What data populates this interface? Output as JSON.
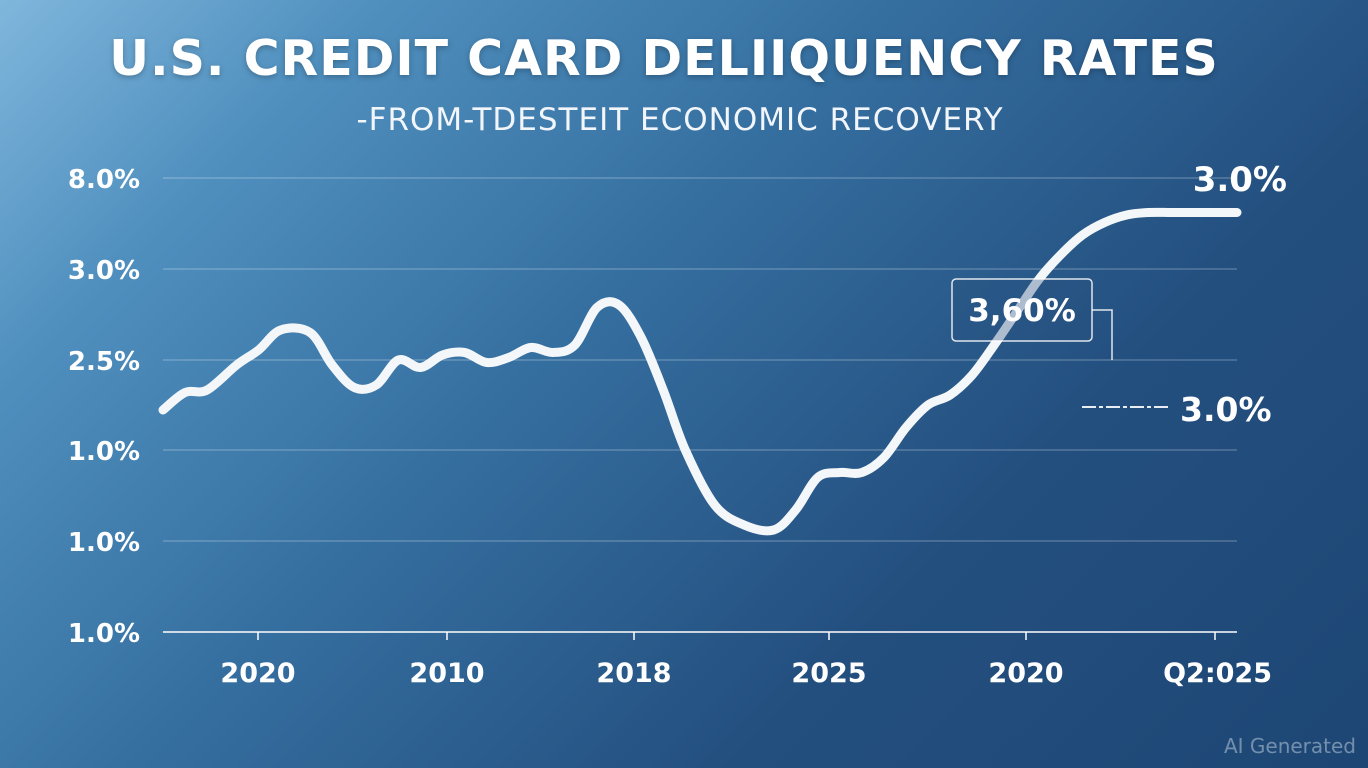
{
  "chart_data": {
    "type": "line",
    "title": "U.S. CREDIT CARD DELIIQUENCY RATES",
    "subtitle": "-FROM-TDESTEIT ECONOMIC RECOVERY",
    "y_tick_labels": [
      "8.0%",
      "3.0%",
      "2.5%",
      "1.0%",
      "1.0%",
      "1.0%"
    ],
    "x_tick_labels": [
      "2020",
      "2010",
      "2018",
      "2025",
      "2020",
      "Q2:025"
    ],
    "grid": true,
    "legend": "none",
    "line_color": "#ffffff",
    "series": [
      {
        "x": [
          0.0,
          0.3,
          0.6,
          1.0,
          1.3,
          1.6,
          2.0,
          2.3,
          2.6,
          2.9,
          3.2,
          3.5,
          3.8,
          4.1,
          4.4,
          4.7,
          5.0,
          5.3,
          5.6,
          5.9,
          6.2,
          6.5,
          6.8,
          7.1,
          7.5,
          7.9,
          8.3,
          8.6,
          8.9,
          9.2,
          9.5,
          9.8,
          10.1,
          10.4,
          10.7,
          11.0,
          11.3,
          11.6,
          11.9,
          12.2,
          12.5,
          12.8,
          13.1,
          13.4,
          13.7,
          14.0,
          14.3,
          14.6
        ],
        "values": [
          2.8,
          3.15,
          3.2,
          3.7,
          4.0,
          4.4,
          4.35,
          3.7,
          3.25,
          3.3,
          3.8,
          3.65,
          3.9,
          3.95,
          3.75,
          3.85,
          4.05,
          3.95,
          4.1,
          4.85,
          4.9,
          4.25,
          3.2,
          2.0,
          0.9,
          0.5,
          0.4,
          0.8,
          1.45,
          1.55,
          1.55,
          1.85,
          2.45,
          2.9,
          3.1,
          3.5,
          4.1,
          4.75,
          5.4,
          5.9,
          6.3,
          6.55,
          6.7,
          6.75,
          6.75,
          6.75,
          6.75,
          6.75
        ]
      }
    ],
    "annotations": [
      {
        "text": "3.0%",
        "style": "large"
      },
      {
        "text": "3,60%",
        "style": "boxed"
      },
      {
        "text": "3.0%",
        "style": "leader"
      }
    ]
  },
  "watermark": "AI Generated"
}
